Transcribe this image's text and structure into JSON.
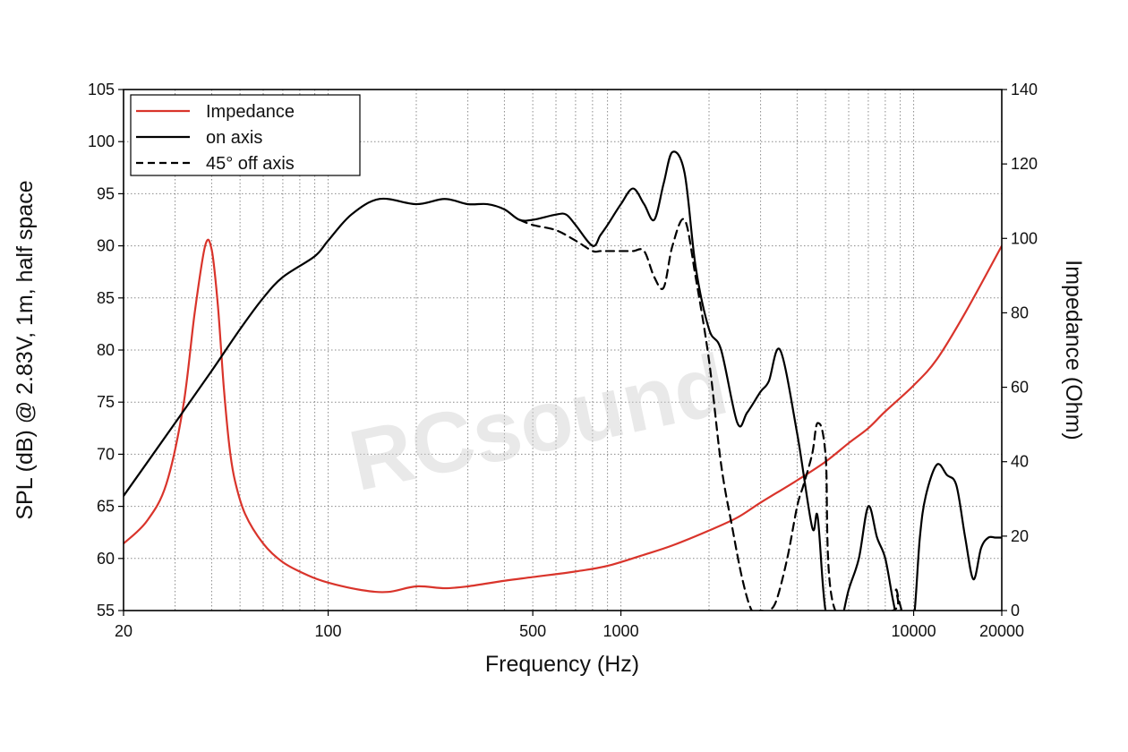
{
  "chart_data": {
    "type": "line",
    "xlabel": "Frequency (Hz)",
    "ylabel": "SPL (dB) @ 2.83V, 1m, half space",
    "y2label": "Impedance (Ohm)",
    "xscale": "log",
    "xlim": [
      20,
      20000
    ],
    "ylim": [
      55,
      105
    ],
    "y2lim": [
      0,
      140
    ],
    "grid": true,
    "legend_position": "top-left",
    "watermark": "RCsound",
    "x_ticks": [
      20,
      100,
      500,
      1000,
      10000,
      20000
    ],
    "x_tick_labels": [
      "20",
      "100",
      "500",
      "1000",
      "10000",
      "20000"
    ],
    "y_ticks": [
      55,
      60,
      65,
      70,
      75,
      80,
      85,
      90,
      95,
      100,
      105
    ],
    "y_tick_labels": [
      "55",
      "60",
      "65",
      "70",
      "75",
      "80",
      "85",
      "90",
      "95",
      "100",
      "105"
    ],
    "y2_ticks": [
      0,
      20,
      40,
      60,
      80,
      100,
      120,
      140
    ],
    "y2_tick_labels": [
      "0",
      "20",
      "40",
      "60",
      "80",
      "100",
      "120",
      "140"
    ],
    "series": [
      {
        "name": "Impedance",
        "axis": "right",
        "color": "#d9342b",
        "style": "solid",
        "x": [
          20,
          24,
          28,
          32,
          35,
          38,
          40,
          42,
          44,
          46,
          48,
          52,
          60,
          70,
          85,
          100,
          130,
          160,
          200,
          250,
          300,
          400,
          500,
          700,
          900,
          1200,
          1500,
          2000,
          2500,
          3000,
          4000,
          5000,
          6000,
          7000,
          8000,
          10000,
          12000,
          15000,
          20000
        ],
        "values": [
          18,
          24,
          34,
          55,
          80,
          98,
          97,
          82,
          60,
          44,
          35,
          26,
          18,
          13,
          9.5,
          7.5,
          5.5,
          5,
          6.5,
          6,
          6.5,
          8,
          9,
          10.5,
          12,
          15,
          17.5,
          21.5,
          25,
          29,
          35,
          40,
          45,
          49,
          53.5,
          60.5,
          67.5,
          80,
          98
        ]
      },
      {
        "name": "on axis",
        "axis": "left",
        "color": "#000000",
        "style": "solid",
        "x": [
          20,
          30,
          40,
          50,
          60,
          70,
          90,
          100,
          120,
          150,
          200,
          250,
          300,
          350,
          400,
          450,
          500,
          600,
          650,
          700,
          800,
          850,
          900,
          1000,
          1100,
          1200,
          1300,
          1400,
          1500,
          1650,
          1800,
          2000,
          2200,
          2500,
          2700,
          3000,
          3200,
          3500,
          4000,
          4500,
          4700,
          5000,
          5500,
          6000,
          6500,
          7000,
          7500,
          8000,
          8500,
          9000,
          9500,
          10000,
          10500,
          11000,
          12000,
          13000,
          14000,
          15000,
          16000,
          17000,
          18000,
          19000,
          20000
        ],
        "values": [
          66,
          73,
          78,
          82,
          85,
          87,
          89,
          90.5,
          93,
          94.5,
          94,
          94.5,
          94,
          94,
          93.5,
          92.5,
          92.5,
          93,
          93,
          92,
          90,
          91,
          92,
          94,
          95.5,
          94,
          92.5,
          96,
          99,
          97,
          88,
          82,
          80,
          73,
          74,
          76,
          77,
          80,
          72,
          63,
          64,
          55,
          53,
          57,
          60,
          65,
          62,
          60,
          56,
          53,
          54,
          54,
          62,
          66,
          69,
          68,
          67,
          62,
          58,
          61,
          62,
          62,
          62
        ]
      },
      {
        "name": "45° off axis",
        "axis": "left",
        "color": "#000000",
        "style": "dashed",
        "x": [
          450,
          500,
          600,
          700,
          800,
          850,
          900,
          1000,
          1100,
          1200,
          1300,
          1400,
          1500,
          1650,
          1800,
          2000,
          2200,
          2400,
          2600,
          2800,
          3000,
          3200,
          3400,
          3700,
          4000,
          4200,
          4500,
          4700,
          5000,
          5400,
          8500,
          8700,
          8900,
          9100
        ],
        "values": [
          92.5,
          92,
          91.5,
          90.5,
          89.5,
          89.5,
          89.5,
          89.5,
          89.5,
          89.5,
          87,
          86,
          90,
          92.5,
          87,
          79,
          69,
          63,
          58,
          55,
          55,
          55,
          56,
          60,
          65,
          67,
          70,
          73,
          70,
          55,
          55,
          57,
          56,
          55
        ]
      }
    ]
  }
}
